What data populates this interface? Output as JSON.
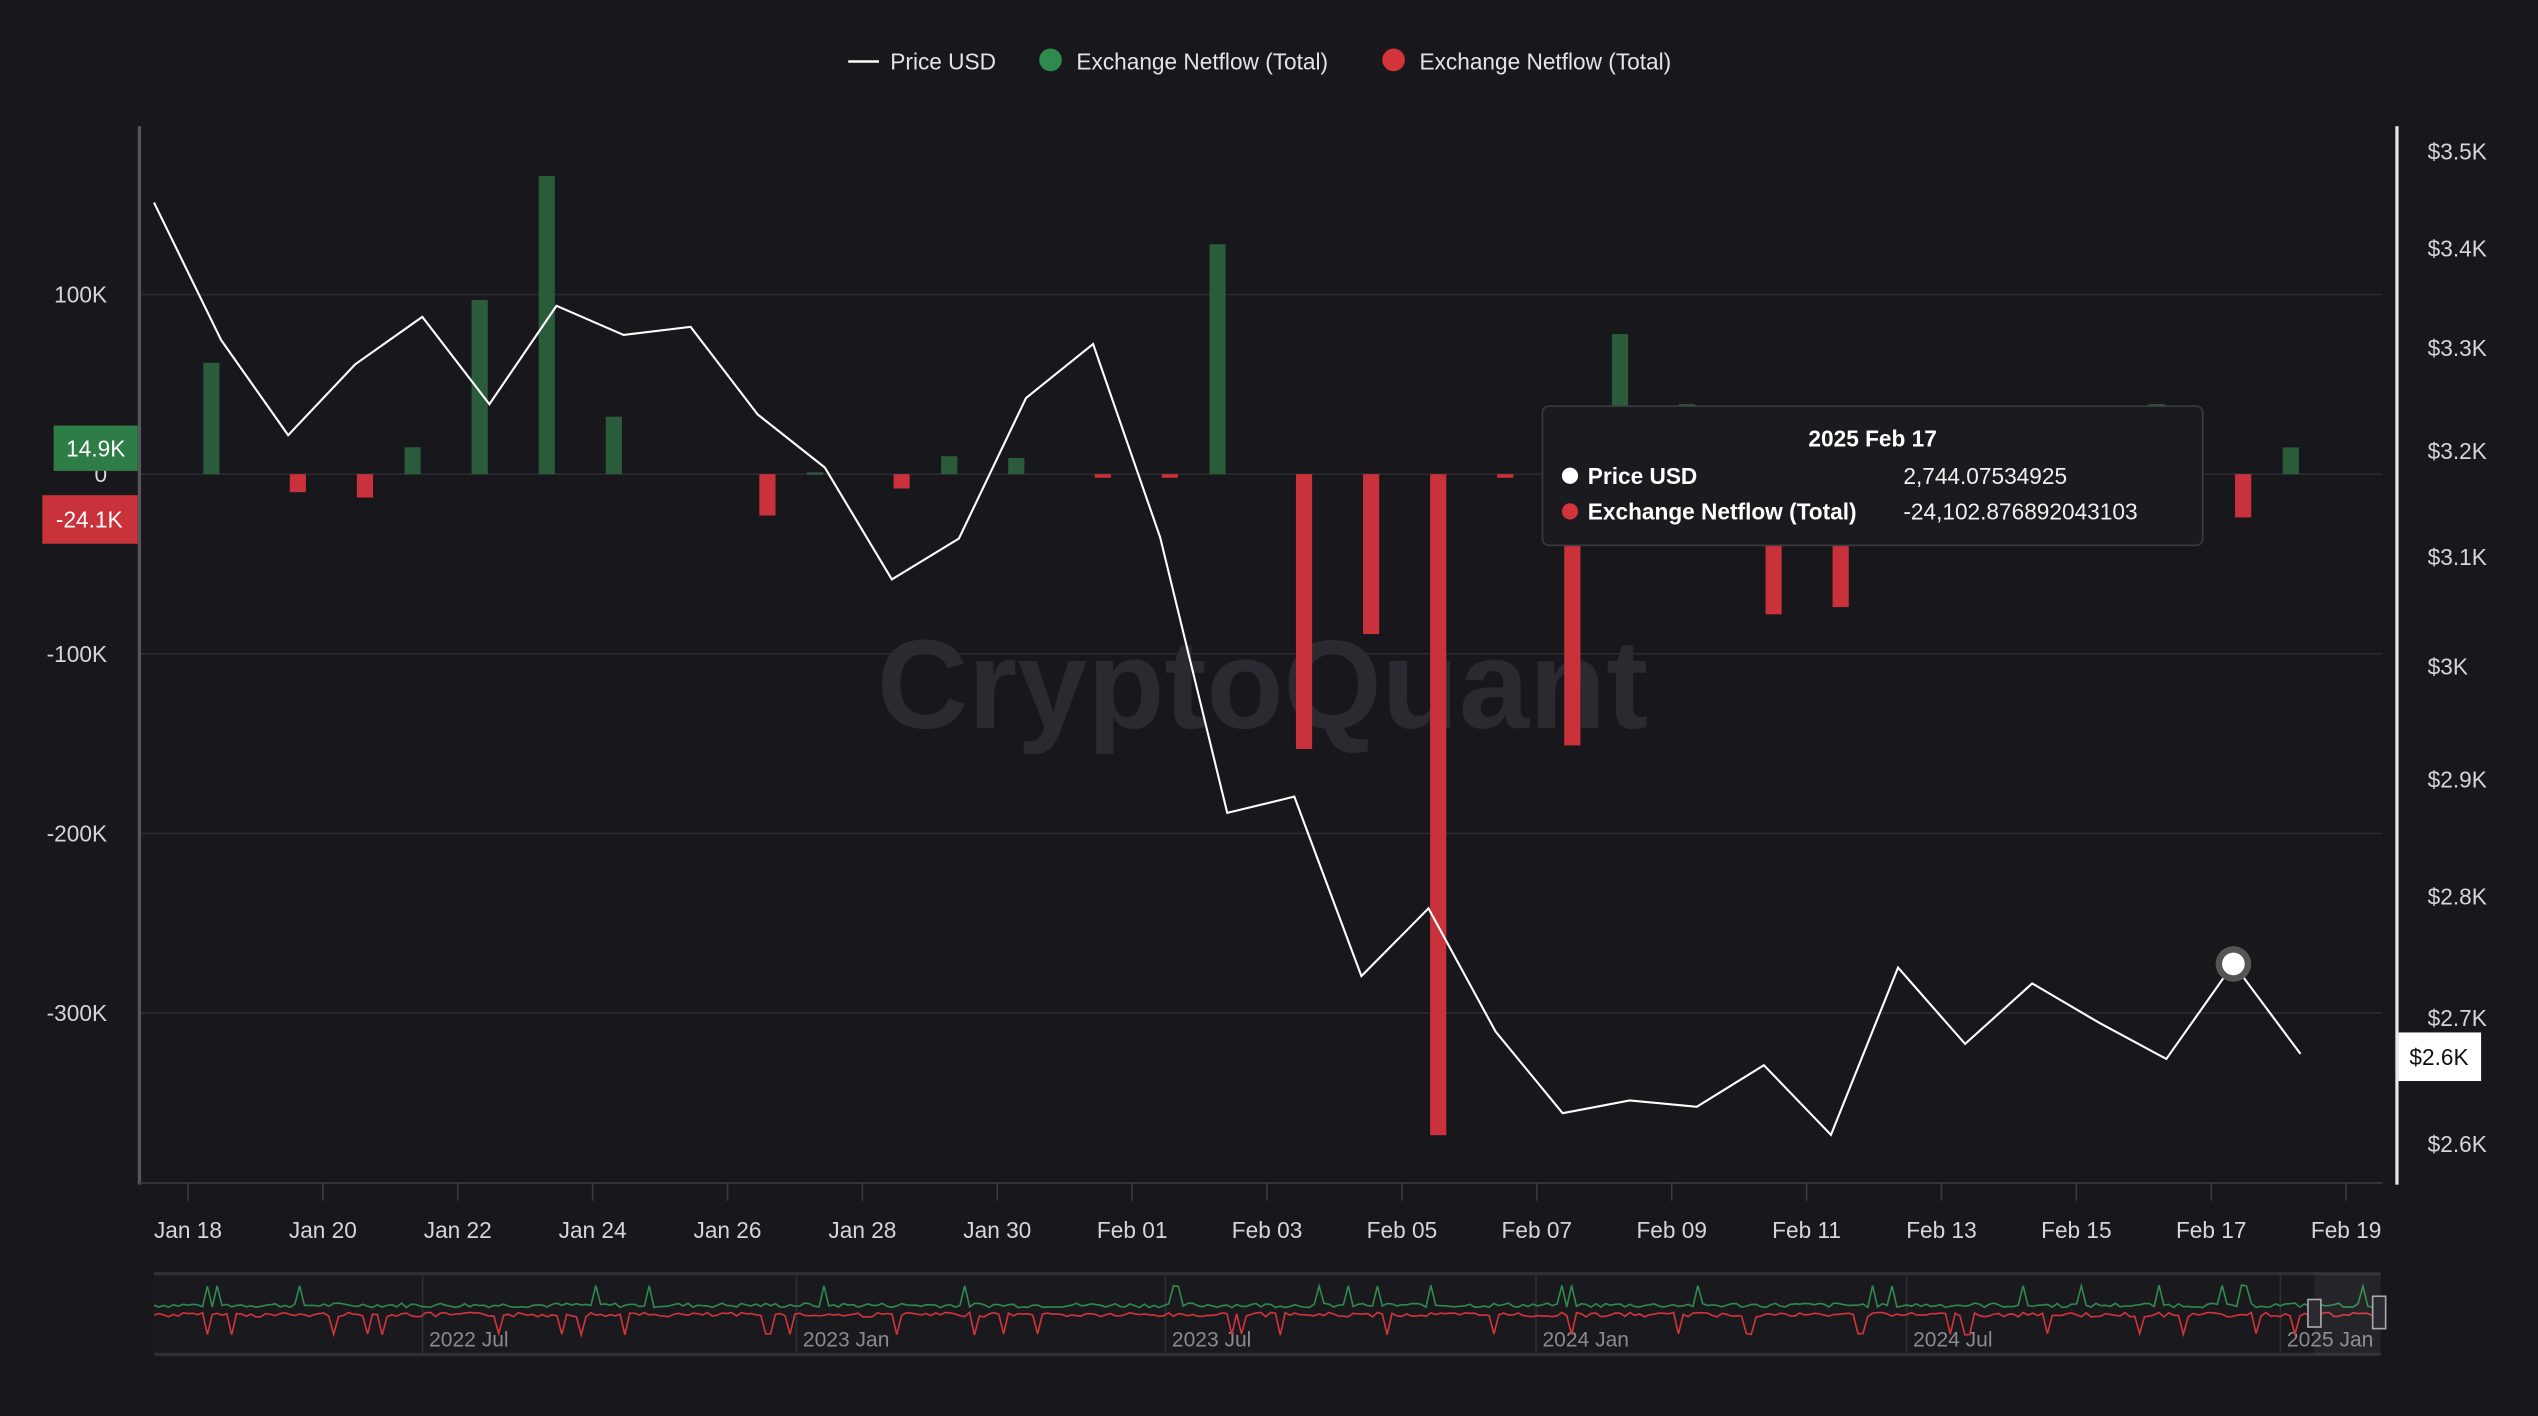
{
  "legend": [
    {
      "label": "Price USD",
      "color": "#ffffff",
      "icon": "line-icon"
    },
    {
      "label": "Exchange Netflow (Total)",
      "color": "#2f8a4e",
      "icon": "dot-icon"
    },
    {
      "label": "Exchange Netflow (Total)",
      "color": "#d3343b",
      "icon": "dot-icon"
    }
  ],
  "watermark": "CryptoQuant",
  "tooltip": {
    "title": "2025 Feb 17",
    "rows": [
      {
        "label": "Price USD",
        "value": "2,744.07534925"
      },
      {
        "label": "Exchange Netflow (Total)",
        "value": "-24,102.876892043103"
      }
    ]
  },
  "badges": {
    "left_green": "14.9K",
    "left_red": "-24.1K",
    "right_price": "$2.6K"
  },
  "navigator": {
    "labels": [
      "2022 Jul",
      "2023 Jan",
      "2023 Jul",
      "2024 Jan",
      "2024 Jul",
      "2025 Jan"
    ]
  },
  "chart_data": {
    "type": "bar+line",
    "title": "",
    "x_tick_labels": [
      "Jan 18",
      "Jan 20",
      "Jan 22",
      "Jan 24",
      "Jan 26",
      "Jan 28",
      "Jan 30",
      "Feb 01",
      "Feb 03",
      "Feb 05",
      "Feb 07",
      "Feb 09",
      "Feb 11",
      "Feb 13",
      "Feb 15",
      "Feb 17",
      "Feb 19"
    ],
    "left_axis": {
      "ticks": [
        100000,
        0,
        -100000,
        -200000,
        -300000
      ],
      "labels": [
        "100K",
        "0",
        "-100K",
        "-200K",
        "-300K"
      ],
      "range": [
        -395000,
        190000
      ]
    },
    "right_axis": {
      "scale": "log",
      "ticks": [
        3500,
        3400,
        3300,
        3200,
        3100,
        3000,
        2900,
        2800,
        2700,
        2600
      ],
      "labels": [
        "$3.5K",
        "$3.4K",
        "$3.3K",
        "$3.2K",
        "$3.1K",
        "$3K",
        "$2.9K",
        "$2.8K",
        "$2.7K",
        "$2.6K"
      ]
    },
    "dates": [
      "Jan 17",
      "Jan 18",
      "Jan 19",
      "Jan 20",
      "Jan 21",
      "Jan 22",
      "Jan 23",
      "Jan 24",
      "Jan 25",
      "Jan 26",
      "Jan 27",
      "Jan 28",
      "Jan 29",
      "Jan 30",
      "Jan 31",
      "Feb 01",
      "Feb 02",
      "Feb 03",
      "Feb 04",
      "Feb 05",
      "Feb 06",
      "Feb 07",
      "Feb 08",
      "Feb 09",
      "Feb 10",
      "Feb 11",
      "Feb 12",
      "Feb 13",
      "Feb 14",
      "Feb 15",
      "Feb 16",
      "Feb 17",
      "Feb 18"
    ],
    "series": [
      {
        "name": "Price USD",
        "type": "line",
        "color": "#ffffff",
        "values": [
          3447,
          3308,
          3215,
          3284,
          3331,
          3245,
          3342,
          3313,
          3321,
          3235,
          3184,
          3079,
          3117,
          3251,
          3304,
          3118,
          2871,
          2885,
          2734,
          2790,
          2689,
          2624,
          2634,
          2629,
          2662,
          2607,
          2741,
          2679,
          2728,
          2696,
          2667,
          2744,
          2671
        ]
      },
      {
        "name": "Exchange Netflow (Total)",
        "type": "bar",
        "positive_color": "#2a5b3a",
        "negative_color": "#c9323a",
        "values": [
          0,
          62000,
          -10000,
          -13000,
          15000,
          97000,
          166000,
          32000,
          0,
          -23000,
          1000,
          -8000,
          10000,
          9000,
          -2000,
          -2000,
          128000,
          -153000,
          -89000,
          -368000,
          -2000,
          -151000,
          78000,
          39000,
          -78000,
          -74000,
          0,
          0,
          0,
          0,
          39000,
          -24103,
          14900
        ]
      }
    ],
    "hover_index": 31
  }
}
